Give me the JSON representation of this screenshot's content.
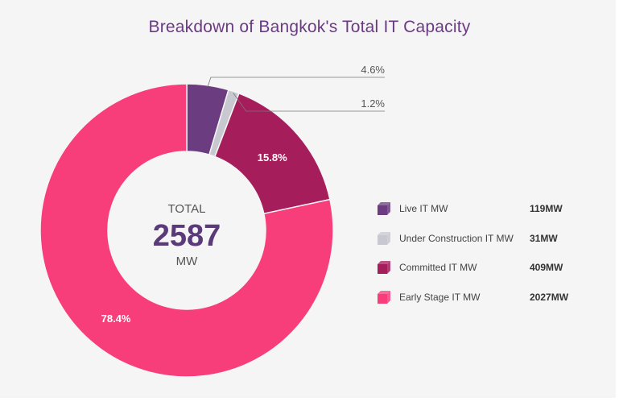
{
  "chart_data": {
    "type": "pie",
    "title": "Breakdown of Bangkok's Total IT Capacity",
    "center": {
      "label": "TOTAL",
      "value": "2587",
      "unit": "MW"
    },
    "categories": [
      "Live IT MW",
      "Under Construction IT MW",
      "Committed IT MW",
      "Early Stage IT MW"
    ],
    "values": [
      119,
      31,
      409,
      2027
    ],
    "percent_labels": [
      "4.6%",
      "1.2%",
      "15.8%",
      "78.4%"
    ],
    "value_labels": [
      "119MW",
      "31MW",
      "409MW",
      "2027MW"
    ],
    "colors": [
      "#6b3d80",
      "#c8c8d0",
      "#a61d5c",
      "#f83e7a"
    ],
    "legend_position": "right"
  }
}
